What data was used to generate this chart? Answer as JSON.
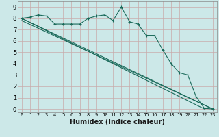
{
  "bg_color": "#cce8e8",
  "grid_color": "#c8aaaa",
  "line_color": "#1a6a5a",
  "xlabel": "Humidex (Indice chaleur)",
  "xlim": [
    -0.5,
    23.5
  ],
  "ylim": [
    -0.3,
    9.5
  ],
  "xticks": [
    0,
    1,
    2,
    3,
    4,
    5,
    6,
    7,
    8,
    9,
    10,
    11,
    12,
    13,
    14,
    15,
    16,
    17,
    18,
    19,
    20,
    21,
    22,
    23
  ],
  "yticks": [
    0,
    1,
    2,
    3,
    4,
    5,
    6,
    7,
    8,
    9
  ],
  "line1_x": [
    0,
    1,
    2,
    3,
    4,
    5,
    6,
    7,
    8,
    9,
    10,
    11,
    12,
    13,
    14,
    15,
    16,
    17,
    18,
    19,
    20,
    21,
    22,
    23
  ],
  "line1_y": [
    8.0,
    8.1,
    8.3,
    8.2,
    7.5,
    7.5,
    7.5,
    7.5,
    8.0,
    8.2,
    8.3,
    7.8,
    9.0,
    7.7,
    7.5,
    6.5,
    6.5,
    5.2,
    4.0,
    3.2,
    3.0,
    1.1,
    0.05,
    0.0
  ],
  "line2_x": [
    0,
    22
  ],
  "line2_y": [
    8.0,
    0.0
  ],
  "line3_x": [
    0,
    23
  ],
  "line3_y": [
    8.0,
    0.0
  ],
  "line4_x": [
    0,
    23
  ],
  "line4_y": [
    7.8,
    0.0
  ],
  "xlabel_fontsize": 7,
  "tick_fontsize": 5,
  "ytick_fontsize": 6
}
